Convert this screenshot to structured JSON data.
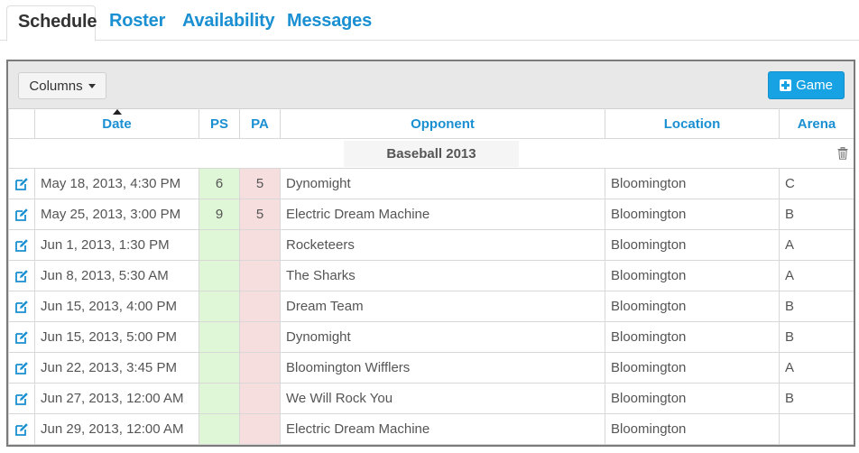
{
  "tabs": [
    {
      "label": "Schedule",
      "active": true
    },
    {
      "label": "Roster",
      "active": false
    },
    {
      "label": "Availability",
      "active": false
    },
    {
      "label": "Messages",
      "active": false
    }
  ],
  "toolbar": {
    "columns_label": "Columns",
    "game_label": "Game",
    "accent_color": "#17a2e3"
  },
  "table": {
    "headers": [
      "Date",
      "PS",
      "PA",
      "Opponent",
      "Location",
      "Arena"
    ],
    "sorted_by": "Date",
    "group_label": "Baseball 2013",
    "rows": [
      {
        "date": "May 18, 2013, 4:30 PM",
        "ps": "6",
        "pa": "5",
        "opponent": "Dynomight",
        "location": "Bloomington",
        "arena": "C"
      },
      {
        "date": "May 25, 2013, 3:00 PM",
        "ps": "9",
        "pa": "5",
        "opponent": "Electric Dream Machine",
        "location": "Bloomington",
        "arena": "B"
      },
      {
        "date": "Jun 1, 2013, 1:30 PM",
        "ps": "",
        "pa": "",
        "opponent": "Rocketeers",
        "location": "Bloomington",
        "arena": "A"
      },
      {
        "date": "Jun 8, 2013, 5:30 AM",
        "ps": "",
        "pa": "",
        "opponent": "The Sharks",
        "location": "Bloomington",
        "arena": "A"
      },
      {
        "date": "Jun 15, 2013, 4:00 PM",
        "ps": "",
        "pa": "",
        "opponent": "Dream Team",
        "location": "Bloomington",
        "arena": "B"
      },
      {
        "date": "Jun 15, 2013, 5:00 PM",
        "ps": "",
        "pa": "",
        "opponent": "Dynomight",
        "location": "Bloomington",
        "arena": "B"
      },
      {
        "date": "Jun 22, 2013, 3:45 PM",
        "ps": "",
        "pa": "",
        "opponent": "Bloomington Wifflers",
        "location": "Bloomington",
        "arena": "A"
      },
      {
        "date": "Jun 27, 2013, 12:00 AM",
        "ps": "",
        "pa": "",
        "opponent": "We Will Rock You",
        "location": "Bloomington",
        "arena": "B"
      },
      {
        "date": "Jun 29, 2013, 12:00 AM",
        "ps": "",
        "pa": "",
        "opponent": "Electric Dream Machine",
        "location": "Bloomington",
        "arena": ""
      }
    ]
  },
  "colors": {
    "link": "#1a8fd1",
    "ps_bg": "#dff7d6",
    "pa_bg": "#f7dede"
  },
  "icons": {
    "edit": "edit-icon",
    "trash": "trash-icon",
    "add": "plus-square-icon",
    "sort": "sort-ascending-icon"
  }
}
